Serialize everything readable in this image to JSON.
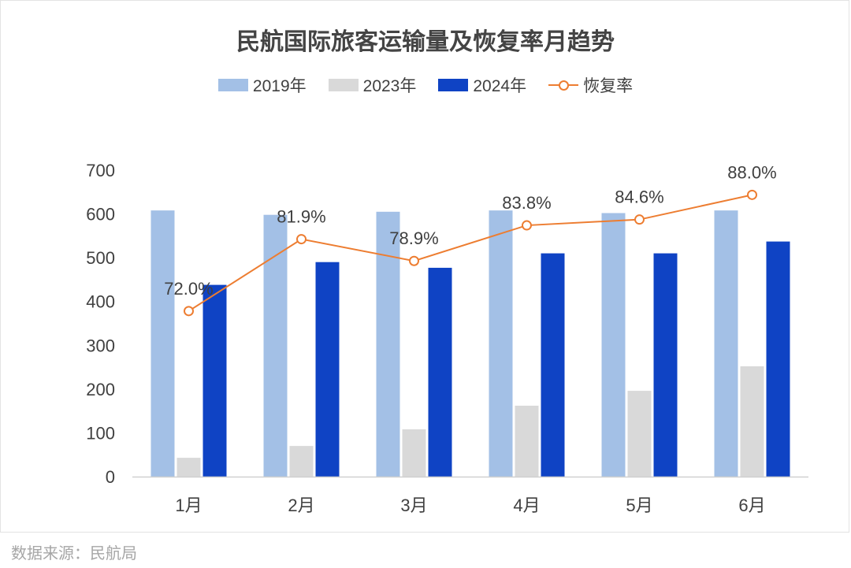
{
  "title": "民航国际旅客运输量及恢复率月趋势",
  "source": "数据来源：民航局",
  "legend": [
    {
      "label": "2019年",
      "kind": "bar",
      "color": "#a3c0e6"
    },
    {
      "label": "2023年",
      "kind": "bar",
      "color": "#d9d9d9"
    },
    {
      "label": "2024年",
      "kind": "bar",
      "color": "#0f43c4"
    },
    {
      "label": "恢复率",
      "kind": "line",
      "color": "#ed7d31"
    }
  ],
  "chart_data": {
    "type": "bar",
    "categories": [
      "1月",
      "2月",
      "3月",
      "4月",
      "5月",
      "6月"
    ],
    "series": [
      {
        "name": "2019年",
        "color": "#a3c0e6",
        "values": [
          608,
          598,
          605,
          608,
          602,
          608
        ]
      },
      {
        "name": "2023年",
        "color": "#d9d9d9",
        "values": [
          43,
          70,
          108,
          162,
          196,
          252
        ]
      },
      {
        "name": "2024年",
        "color": "#0f43c4",
        "values": [
          438,
          490,
          477,
          510,
          510,
          537
        ]
      }
    ],
    "line_series": {
      "name": "恢复率",
      "color": "#ed7d31",
      "values": [
        72.0,
        81.9,
        78.9,
        83.8,
        84.6,
        88.0
      ],
      "labels": [
        "72.0%",
        "81.9%",
        "78.9%",
        "83.8%",
        "84.6%",
        "88.0%"
      ]
    },
    "ylim": [
      0,
      700
    ],
    "yticks": [
      0,
      100,
      200,
      300,
      400,
      500,
      600,
      700
    ],
    "grid": false,
    "legend_position": "top"
  }
}
